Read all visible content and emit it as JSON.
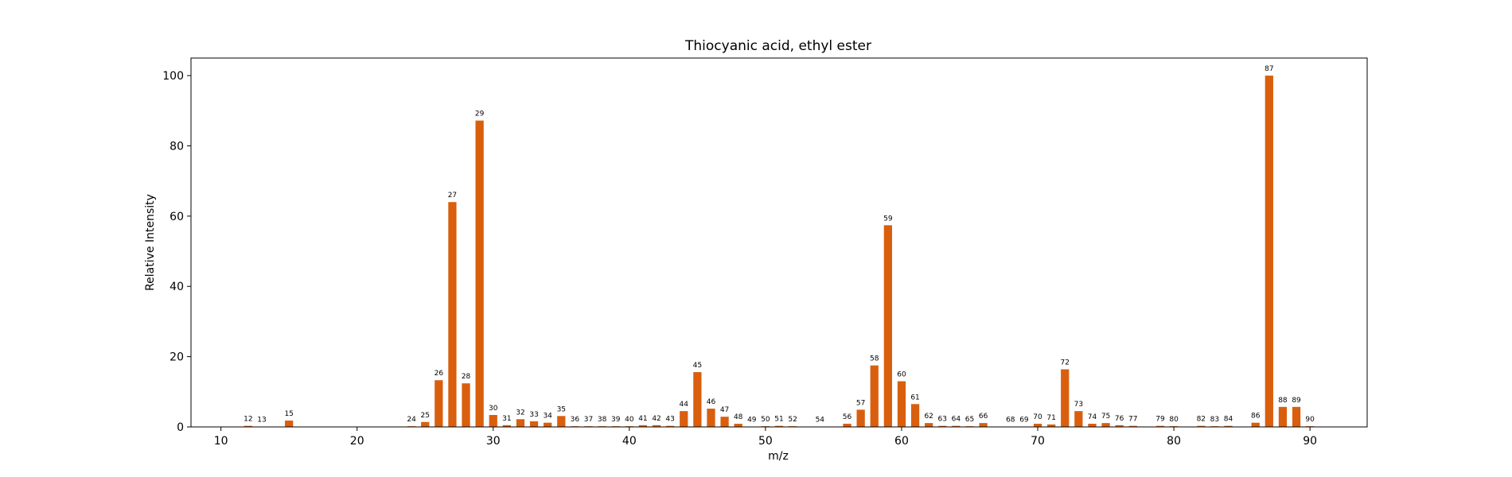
{
  "chart_data": {
    "type": "bar",
    "title": "Thiocyanic acid, ethyl ester",
    "xlabel": "m/z",
    "ylabel": "Relative Intensity",
    "xlim": [
      7.8,
      94.2
    ],
    "ylim": [
      0,
      105
    ],
    "xticks": [
      10,
      20,
      30,
      40,
      50,
      60,
      70,
      80,
      90
    ],
    "yticks": [
      0,
      20,
      40,
      60,
      80,
      100
    ],
    "grid": false,
    "bar_color": "#d95f0e",
    "x": [
      12,
      13,
      15,
      24,
      25,
      26,
      27,
      28,
      29,
      30,
      31,
      32,
      33,
      34,
      35,
      36,
      37,
      38,
      39,
      40,
      41,
      42,
      43,
      44,
      45,
      46,
      47,
      48,
      49,
      50,
      51,
      52,
      54,
      56,
      57,
      58,
      59,
      60,
      61,
      62,
      63,
      64,
      65,
      66,
      68,
      69,
      70,
      71,
      72,
      73,
      74,
      75,
      76,
      77,
      79,
      80,
      82,
      83,
      84,
      86,
      87,
      88,
      89,
      90
    ],
    "values": [
      0.3,
      0.1,
      1.8,
      0.2,
      1.4,
      13.3,
      64.0,
      12.4,
      87.2,
      3.4,
      0.5,
      2.2,
      1.6,
      1.2,
      3.1,
      0.2,
      0.2,
      0.2,
      0.2,
      0.2,
      0.5,
      0.5,
      0.3,
      4.5,
      15.6,
      5.2,
      2.9,
      0.9,
      0.1,
      0.2,
      0.3,
      0.2,
      0.1,
      0.9,
      4.9,
      17.5,
      57.4,
      13.0,
      6.5,
      1.1,
      0.3,
      0.3,
      0.2,
      1.1,
      0.1,
      0.1,
      0.9,
      0.7,
      16.4,
      4.5,
      0.9,
      1.1,
      0.5,
      0.3,
      0.3,
      0.2,
      0.3,
      0.2,
      0.3,
      1.2,
      100.0,
      5.7,
      5.7,
      0.2
    ],
    "labels": [
      "12",
      "13",
      "15",
      "24",
      "25",
      "26",
      "27",
      "28",
      "29",
      "30",
      "31",
      "32",
      "33",
      "34",
      "35",
      "36",
      "37",
      "38",
      "39",
      "40",
      "41",
      "42",
      "43",
      "44",
      "45",
      "46",
      "47",
      "48",
      "49",
      "50",
      "51",
      "52",
      "54",
      "56",
      "57",
      "58",
      "59",
      "60",
      "61",
      "62",
      "63",
      "64",
      "65",
      "66",
      "68",
      "69",
      "70",
      "71",
      "72",
      "73",
      "74",
      "75",
      "76",
      "77",
      "79",
      "80",
      "82",
      "83",
      "84",
      "86",
      "87",
      "88",
      "89",
      "90"
    ]
  }
}
